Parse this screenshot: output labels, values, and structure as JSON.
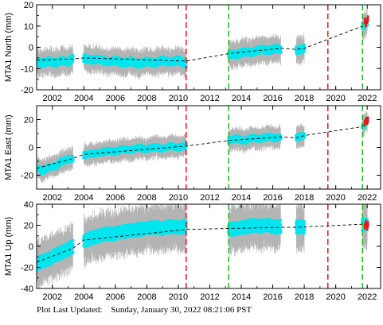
{
  "footer": {
    "label": "Plot Last Updated:",
    "timestamp": "Sunday, January 30, 2022 08:21:06 PST"
  },
  "colors": {
    "error_bars": "#b4b4b4",
    "data": "#00e5ee",
    "model": "#000000",
    "recent": "#e8141a",
    "equipment_change": "#e8141a",
    "event": "#22b422"
  },
  "chart_data": [
    {
      "type": "scatter",
      "ylabel": "MTA1 North (mm)",
      "xlim": [
        2001.0,
        2022.85
      ],
      "ylim": [
        -20,
        20
      ],
      "yticks": [
        -20,
        -10,
        0,
        10,
        20
      ],
      "xticks": [
        2002,
        2004,
        2006,
        2008,
        2010,
        2012,
        2014,
        2016,
        2018,
        2020,
        2022
      ],
      "error_half_width": 4,
      "data_segments": [
        {
          "x": [
            2001.0,
            2001.4,
            2001.8,
            2002.2,
            2002.6,
            2003.0,
            2003.3
          ],
          "y": [
            -6.5,
            -7.5,
            -6.5,
            -7.5,
            -6.0,
            -7.0,
            -5.0
          ]
        },
        {
          "x": [
            2004.0,
            2004.5,
            2005.0,
            2005.5,
            2006.0,
            2006.5,
            2007.0,
            2007.5,
            2008.0,
            2008.5,
            2009.0,
            2009.5,
            2010.0,
            2010.5
          ],
          "y": [
            -5.0,
            -6.0,
            -5.5,
            -7.0,
            -6.0,
            -7.5,
            -6.5,
            -8.0,
            -6.5,
            -7.5,
            -6.0,
            -7.0,
            -6.0,
            -8.0
          ]
        },
        {
          "x": [
            2013.2,
            2013.7,
            2014.2,
            2014.7,
            2015.2,
            2015.7,
            2016.2,
            2016.5
          ],
          "y": [
            -3.0,
            -3.5,
            -2.0,
            -2.5,
            -1.0,
            -1.5,
            -0.5,
            -1.0
          ]
        },
        {
          "x": [
            2017.5,
            2017.8,
            2018.0
          ],
          "y": [
            -1.5,
            -1.0,
            -0.5
          ]
        },
        {
          "x": [
            2021.7,
            2021.85,
            2022.0
          ],
          "y": [
            9.5,
            11.0,
            12.0
          ]
        }
      ],
      "model_line": {
        "x": [
          2001.0,
          2003.3,
          2004.0,
          2010.5,
          2013.2,
          2016.5,
          2017.5,
          2018.0,
          2021.7,
          2022.0
        ],
        "y": [
          -6.0,
          -5.5,
          -5.0,
          -6.5,
          -3.0,
          -0.5,
          -1.0,
          -0.5,
          10.0,
          12.0
        ]
      },
      "recent": {
        "x": [
          2021.85,
          2021.92,
          2022.0,
          2022.05
        ],
        "y": [
          12.5,
          11.0,
          12.5,
          13.5
        ]
      },
      "vlines_red": [
        2010.5,
        2019.5
      ],
      "vlines_green": [
        2013.2,
        2021.7
      ]
    },
    {
      "type": "scatter",
      "ylabel": "MTA1 East (mm)",
      "xlim": [
        2001.0,
        2022.85
      ],
      "ylim": [
        -30,
        30
      ],
      "yticks": [
        -20,
        0,
        20
      ],
      "xticks": [
        2002,
        2004,
        2006,
        2008,
        2010,
        2012,
        2014,
        2016,
        2018,
        2020,
        2022
      ],
      "error_half_width": 5,
      "data_segments": [
        {
          "x": [
            2001.0,
            2001.4,
            2001.8,
            2002.2,
            2002.6,
            2003.0,
            2003.3
          ],
          "y": [
            -14.5,
            -17.0,
            -14.0,
            -13.5,
            -10.0,
            -8.5,
            -8.0
          ]
        },
        {
          "x": [
            2004.0,
            2004.5,
            2005.0,
            2005.5,
            2006.0,
            2006.5,
            2007.0,
            2007.5,
            2008.0,
            2008.5,
            2009.0,
            2009.5,
            2010.0,
            2010.5
          ],
          "y": [
            -5.5,
            -4.5,
            -4.0,
            -2.5,
            -3.0,
            -1.0,
            -2.0,
            0.0,
            -1.5,
            0.5,
            -1.0,
            1.0,
            0.0,
            1.5
          ]
        },
        {
          "x": [
            2013.2,
            2013.7,
            2014.2,
            2014.7,
            2015.2,
            2015.7,
            2016.2,
            2016.5
          ],
          "y": [
            5.0,
            6.5,
            4.5,
            7.0,
            6.0,
            8.0,
            6.5,
            8.0
          ]
        },
        {
          "x": [
            2017.5,
            2017.8,
            2018.0
          ],
          "y": [
            7.0,
            8.0,
            8.5
          ]
        },
        {
          "x": [
            2021.7,
            2021.85,
            2022.0
          ],
          "y": [
            15.0,
            17.0,
            19.0
          ]
        }
      ],
      "model_line": {
        "x": [
          2001.0,
          2003.3,
          2004.0,
          2010.5,
          2013.2,
          2016.5,
          2017.5,
          2018.0,
          2021.7,
          2022.0
        ],
        "y": [
          -15.0,
          -8.0,
          -5.0,
          1.0,
          5.0,
          7.5,
          7.0,
          8.5,
          15.0,
          19.0
        ]
      },
      "recent": {
        "x": [
          2021.85,
          2021.92,
          2022.0,
          2022.05
        ],
        "y": [
          17.5,
          19.5,
          18.5,
          20.0
        ]
      },
      "vlines_red": [
        2010.5,
        2019.5
      ],
      "vlines_green": [
        2013.2,
        2021.7
      ]
    },
    {
      "type": "scatter",
      "ylabel": "MTA1 Up (mm)",
      "xlim": [
        2001.0,
        2022.85
      ],
      "ylim": [
        -40,
        40
      ],
      "yticks": [
        -40,
        -20,
        0,
        20,
        40
      ],
      "xticks": [
        2002,
        2004,
        2006,
        2008,
        2010,
        2012,
        2014,
        2016,
        2018,
        2020,
        2022
      ],
      "error_half_width": 14,
      "data_segments": [
        {
          "x": [
            2001.0,
            2001.4,
            2001.8,
            2002.2,
            2002.6,
            2003.0,
            2003.3
          ],
          "y": [
            -17.0,
            -14.0,
            -12.0,
            -8.0,
            -6.0,
            -3.0,
            0.0
          ]
        },
        {
          "x": [
            2004.0,
            2004.5,
            2005.0,
            2005.5,
            2006.0,
            2006.5,
            2007.0,
            2007.5,
            2008.0,
            2008.5,
            2009.0,
            2009.5,
            2010.0,
            2010.5
          ],
          "y": [
            5.0,
            8.0,
            10.0,
            12.0,
            12.0,
            14.0,
            15.0,
            16.0,
            17.0,
            18.0,
            17.0,
            19.0,
            18.0,
            19.0
          ]
        },
        {
          "x": [
            2013.2,
            2013.7,
            2014.2,
            2014.7,
            2015.2,
            2015.7,
            2016.2,
            2016.5
          ],
          "y": [
            16.0,
            17.0,
            18.0,
            20.0,
            19.0,
            20.0,
            18.0,
            19.0
          ]
        },
        {
          "x": [
            2017.5,
            2017.8,
            2018.0
          ],
          "y": [
            18.0,
            19.0,
            18.0
          ]
        },
        {
          "x": [
            2021.7,
            2021.85,
            2022.0
          ],
          "y": [
            20.0,
            21.0,
            20.0
          ]
        }
      ],
      "model_line": {
        "x": [
          2001.0,
          2003.3,
          2004.0,
          2010.5,
          2013.2,
          2016.5,
          2017.5,
          2018.0,
          2021.7,
          2022.0
        ],
        "y": [
          -15.0,
          -2.0,
          6.0,
          16.0,
          17.0,
          18.0,
          18.0,
          18.5,
          21.0,
          21.5
        ]
      },
      "recent": {
        "x": [
          2021.85,
          2021.92,
          2022.0,
          2022.05
        ],
        "y": [
          19.0,
          22.0,
          18.0,
          21.0
        ]
      },
      "vlines_red": [
        2010.5,
        2019.5
      ],
      "vlines_green": [
        2013.2,
        2021.7
      ]
    }
  ]
}
